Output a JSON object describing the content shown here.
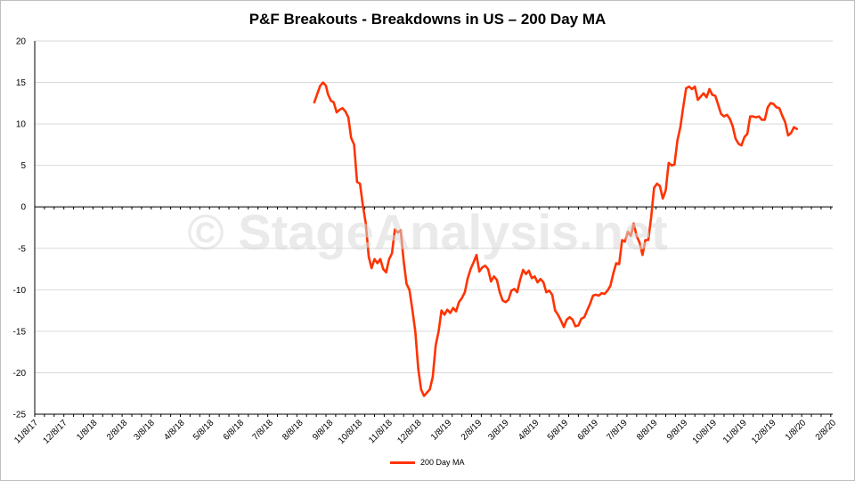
{
  "watermark": "© StageAnalysis.net",
  "colors": {
    "series": "#ff3300",
    "grid": "#d9d9d9",
    "axis": "#000000",
    "watermark": "#d9d9d9"
  },
  "chart_data": {
    "type": "line",
    "title": "P&F Breakouts - Breakdowns in US – 200 Day MA",
    "xlabel": "",
    "ylabel": "",
    "ylim": [
      -25,
      20
    ],
    "yticks": [
      20,
      15,
      10,
      5,
      0,
      -5,
      -10,
      -15,
      -20,
      -25
    ],
    "xlim": [
      "2017-11-08",
      "2020-02-08"
    ],
    "xticks": [
      "11/8/17",
      "12/8/17",
      "1/8/18",
      "2/8/18",
      "3/8/18",
      "4/8/18",
      "5/8/18",
      "6/8/18",
      "7/8/18",
      "8/8/18",
      "9/8/18",
      "10/8/18",
      "11/8/18",
      "12/8/18",
      "1/8/19",
      "2/8/19",
      "3/8/19",
      "4/8/19",
      "5/8/19",
      "6/8/19",
      "7/8/19",
      "8/8/19",
      "9/8/19",
      "10/8/19",
      "11/8/19",
      "12/8/19",
      "1/8/20",
      "2/8/20"
    ],
    "grid": true,
    "legend_position": "bottom",
    "series": [
      {
        "name": "200 Day MA",
        "color": "#ff3300",
        "points": [
          [
            "2018-08-23",
            12.6
          ],
          [
            "2018-08-26",
            13.6
          ],
          [
            "2018-08-29",
            14.6
          ],
          [
            "2018-09-01",
            15.0
          ],
          [
            "2018-09-04",
            14.6
          ],
          [
            "2018-09-06",
            13.6
          ],
          [
            "2018-09-09",
            12.8
          ],
          [
            "2018-09-12",
            12.6
          ],
          [
            "2018-09-15",
            11.4
          ],
          [
            "2018-09-18",
            11.7
          ],
          [
            "2018-09-21",
            11.9
          ],
          [
            "2018-09-24",
            11.5
          ],
          [
            "2018-09-27",
            10.8
          ],
          [
            "2018-09-30",
            8.3
          ],
          [
            "2018-10-03",
            7.5
          ],
          [
            "2018-10-06",
            3.0
          ],
          [
            "2018-10-09",
            2.8
          ],
          [
            "2018-10-12",
            0.2
          ],
          [
            "2018-10-15",
            -2.0
          ],
          [
            "2018-10-18",
            -6.0
          ],
          [
            "2018-10-21",
            -7.4
          ],
          [
            "2018-10-24",
            -6.3
          ],
          [
            "2018-10-27",
            -6.8
          ],
          [
            "2018-10-30",
            -6.3
          ],
          [
            "2018-11-02",
            -7.5
          ],
          [
            "2018-11-05",
            -7.9
          ],
          [
            "2018-11-08",
            -6.3
          ],
          [
            "2018-11-11",
            -5.6
          ],
          [
            "2018-11-14",
            -2.7
          ],
          [
            "2018-11-17",
            -3.1
          ],
          [
            "2018-11-20",
            -2.8
          ],
          [
            "2018-11-23",
            -6.5
          ],
          [
            "2018-11-26",
            -9.3
          ],
          [
            "2018-11-29",
            -10.0
          ],
          [
            "2018-12-02",
            -12.4
          ],
          [
            "2018-12-05",
            -15.0
          ],
          [
            "2018-12-08",
            -19.5
          ],
          [
            "2018-12-11",
            -22.0
          ],
          [
            "2018-12-14",
            -22.8
          ],
          [
            "2018-12-17",
            -22.4
          ],
          [
            "2018-12-20",
            -22.0
          ],
          [
            "2018-12-23",
            -20.5
          ],
          [
            "2018-12-26",
            -16.7
          ],
          [
            "2018-12-29",
            -15.0
          ],
          [
            "2019-01-01",
            -12.5
          ],
          [
            "2019-01-04",
            -13.0
          ],
          [
            "2019-01-07",
            -12.4
          ],
          [
            "2019-01-10",
            -12.8
          ],
          [
            "2019-01-13",
            -12.2
          ],
          [
            "2019-01-16",
            -12.6
          ],
          [
            "2019-01-19",
            -11.5
          ],
          [
            "2019-01-22",
            -11.0
          ],
          [
            "2019-01-25",
            -10.3
          ],
          [
            "2019-01-28",
            -8.6
          ],
          [
            "2019-01-31",
            -7.5
          ],
          [
            "2019-02-03",
            -6.7
          ],
          [
            "2019-02-06",
            -5.8
          ],
          [
            "2019-02-09",
            -7.8
          ],
          [
            "2019-02-12",
            -7.3
          ],
          [
            "2019-02-15",
            -7.1
          ],
          [
            "2019-02-18",
            -7.5
          ],
          [
            "2019-02-21",
            -9.0
          ],
          [
            "2019-02-24",
            -8.4
          ],
          [
            "2019-02-27",
            -8.8
          ],
          [
            "2019-03-02",
            -10.3
          ],
          [
            "2019-03-05",
            -11.3
          ],
          [
            "2019-03-08",
            -11.5
          ],
          [
            "2019-03-11",
            -11.2
          ],
          [
            "2019-03-14",
            -10.1
          ],
          [
            "2019-03-17",
            -9.9
          ],
          [
            "2019-03-20",
            -10.3
          ],
          [
            "2019-03-23",
            -8.8
          ],
          [
            "2019-03-26",
            -7.6
          ],
          [
            "2019-03-29",
            -8.1
          ],
          [
            "2019-04-01",
            -7.7
          ],
          [
            "2019-04-04",
            -8.6
          ],
          [
            "2019-04-07",
            -8.4
          ],
          [
            "2019-04-10",
            -9.1
          ],
          [
            "2019-04-13",
            -8.7
          ],
          [
            "2019-04-16",
            -9.1
          ],
          [
            "2019-04-19",
            -10.3
          ],
          [
            "2019-04-22",
            -10.1
          ],
          [
            "2019-04-25",
            -10.6
          ],
          [
            "2019-04-28",
            -12.5
          ],
          [
            "2019-05-01",
            -13.0
          ],
          [
            "2019-05-04",
            -13.7
          ],
          [
            "2019-05-07",
            -14.5
          ],
          [
            "2019-05-10",
            -13.6
          ],
          [
            "2019-05-13",
            -13.3
          ],
          [
            "2019-05-16",
            -13.6
          ],
          [
            "2019-05-19",
            -14.4
          ],
          [
            "2019-05-22",
            -14.3
          ],
          [
            "2019-05-25",
            -13.5
          ],
          [
            "2019-05-28",
            -13.3
          ],
          [
            "2019-05-31",
            -12.5
          ],
          [
            "2019-06-03",
            -11.7
          ],
          [
            "2019-06-06",
            -10.7
          ],
          [
            "2019-06-09",
            -10.6
          ],
          [
            "2019-06-12",
            -10.7
          ],
          [
            "2019-06-15",
            -10.4
          ],
          [
            "2019-06-18",
            -10.5
          ],
          [
            "2019-06-21",
            -10.1
          ],
          [
            "2019-06-24",
            -9.5
          ],
          [
            "2019-06-27",
            -8.0
          ],
          [
            "2019-06-30",
            -6.8
          ],
          [
            "2019-07-03",
            -6.9
          ],
          [
            "2019-07-06",
            -4.0
          ],
          [
            "2019-07-09",
            -4.2
          ],
          [
            "2019-07-12",
            -3.0
          ],
          [
            "2019-07-15",
            -3.5
          ],
          [
            "2019-07-18",
            -2.0
          ],
          [
            "2019-07-21",
            -3.5
          ],
          [
            "2019-07-24",
            -4.3
          ],
          [
            "2019-07-27",
            -5.8
          ],
          [
            "2019-07-30",
            -4.0
          ],
          [
            "2019-08-02",
            -4.0
          ],
          [
            "2019-08-05",
            -1.2
          ],
          [
            "2019-08-08",
            2.3
          ],
          [
            "2019-08-11",
            2.8
          ],
          [
            "2019-08-14",
            2.5
          ],
          [
            "2019-08-17",
            1.0
          ],
          [
            "2019-08-20",
            2.0
          ],
          [
            "2019-08-23",
            5.3
          ],
          [
            "2019-08-26",
            5.0
          ],
          [
            "2019-08-29",
            5.1
          ],
          [
            "2019-09-01",
            8.0
          ],
          [
            "2019-09-04",
            9.6
          ],
          [
            "2019-09-07",
            12.0
          ],
          [
            "2019-09-10",
            14.3
          ],
          [
            "2019-09-13",
            14.5
          ],
          [
            "2019-09-16",
            14.2
          ],
          [
            "2019-09-19",
            14.5
          ],
          [
            "2019-09-22",
            12.9
          ],
          [
            "2019-09-25",
            13.3
          ],
          [
            "2019-09-28",
            13.7
          ],
          [
            "2019-10-01",
            13.2
          ],
          [
            "2019-10-04",
            14.2
          ],
          [
            "2019-10-07",
            13.5
          ],
          [
            "2019-10-10",
            13.4
          ],
          [
            "2019-10-13",
            12.3
          ],
          [
            "2019-10-16",
            11.2
          ],
          [
            "2019-10-19",
            10.9
          ],
          [
            "2019-10-22",
            11.1
          ],
          [
            "2019-10-25",
            10.6
          ],
          [
            "2019-10-28",
            9.7
          ],
          [
            "2019-10-31",
            8.2
          ],
          [
            "2019-11-03",
            7.6
          ],
          [
            "2019-11-06",
            7.4
          ],
          [
            "2019-11-09",
            8.4
          ],
          [
            "2019-11-12",
            8.8
          ],
          [
            "2019-11-15",
            10.9
          ],
          [
            "2019-11-18",
            10.9
          ],
          [
            "2019-11-21",
            10.8
          ],
          [
            "2019-11-24",
            10.9
          ],
          [
            "2019-11-27",
            10.5
          ],
          [
            "2019-11-30",
            10.5
          ],
          [
            "2019-12-03",
            12.0
          ],
          [
            "2019-12-06",
            12.5
          ],
          [
            "2019-12-09",
            12.4
          ],
          [
            "2019-12-12",
            12.0
          ],
          [
            "2019-12-15",
            11.9
          ],
          [
            "2019-12-18",
            11.0
          ],
          [
            "2019-12-21",
            10.2
          ],
          [
            "2019-12-24",
            8.6
          ],
          [
            "2019-12-27",
            8.9
          ],
          [
            "2019-12-30",
            9.6
          ],
          [
            "2020-01-02",
            9.4
          ]
        ]
      }
    ]
  }
}
